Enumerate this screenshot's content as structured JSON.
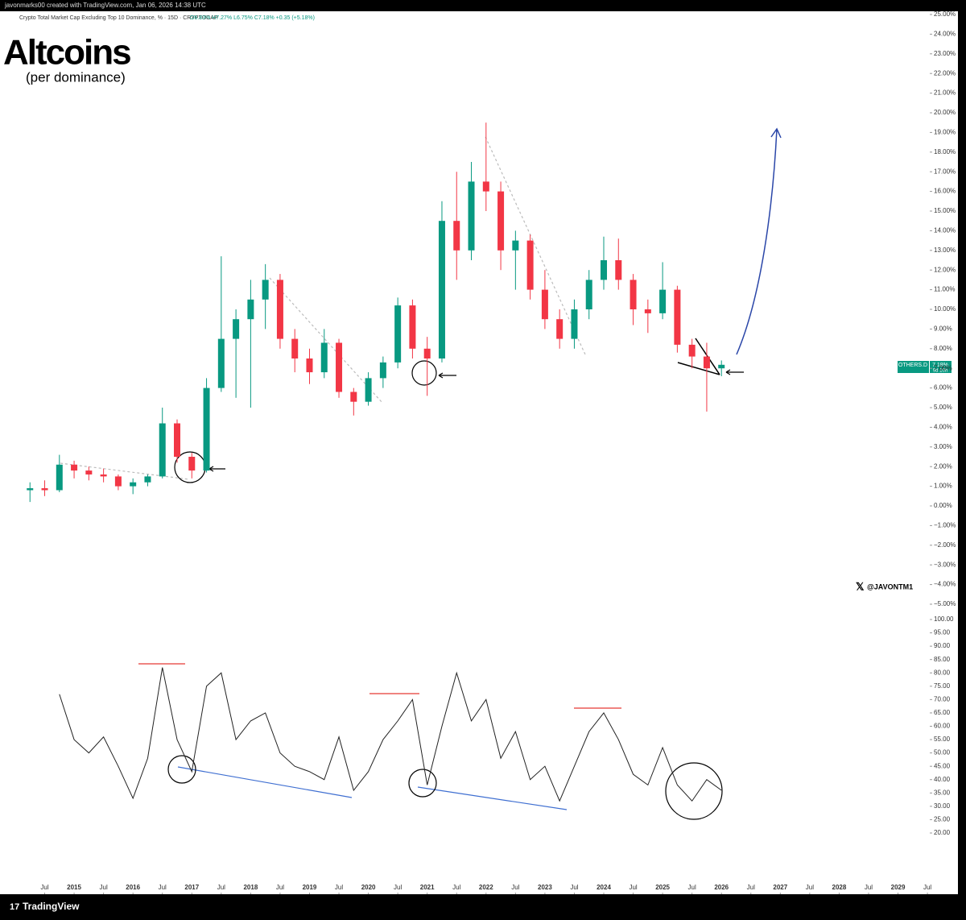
{
  "header": {
    "credit": "javonmarks00 created with TradingView.com, Jan 06, 2026 14:38 UTC",
    "symbol": "Crypto Total Market Cap Excluding Top 10 Dominance, % · 15D · CRYPTOCAP",
    "ohlc": [
      "O6.83%",
      "H7.27%",
      "L6.75%",
      "C7.18%",
      "+0.35 (+5.18%)"
    ],
    "title": "Altcoins",
    "subtitle": "(per dominance)",
    "watermark": "@JAVONTM1",
    "logo": "TradingView"
  },
  "price_label": {
    "symbol": "OTHERS.D",
    "value": "7.18%",
    "countdown": "9d 10h"
  },
  "chart_data": [
    {
      "type": "candlestick",
      "up_color": "#089981",
      "down_color": "#f23645",
      "xlim": [
        2013.85,
        2029.54
      ],
      "ylim": [
        -5,
        25
      ],
      "xticks": [
        {
          "value": 2014.5,
          "label": "Jul"
        },
        {
          "value": 2015,
          "label": "2015"
        },
        {
          "value": 2015.5,
          "label": "Jul"
        },
        {
          "value": 2016,
          "label": "2016"
        },
        {
          "value": 2016.5,
          "label": "Jul"
        },
        {
          "value": 2017,
          "label": "2017"
        },
        {
          "value": 2017.5,
          "label": "Jul"
        },
        {
          "value": 2018,
          "label": "2018"
        },
        {
          "value": 2018.5,
          "label": "Jul"
        },
        {
          "value": 2019,
          "label": "2019"
        },
        {
          "value": 2019.5,
          "label": "Jul"
        },
        {
          "value": 2020,
          "label": "2020"
        },
        {
          "value": 2020.5,
          "label": "Jul"
        },
        {
          "value": 2021,
          "label": "2021"
        },
        {
          "value": 2021.5,
          "label": "Jul"
        },
        {
          "value": 2022,
          "label": "2022"
        },
        {
          "value": 2022.5,
          "label": "Jul"
        },
        {
          "value": 2023,
          "label": "2023"
        },
        {
          "value": 2023.5,
          "label": "Jul"
        },
        {
          "value": 2024,
          "label": "2024"
        },
        {
          "value": 2024.5,
          "label": "Jul"
        },
        {
          "value": 2025,
          "label": "2025"
        },
        {
          "value": 2025.5,
          "label": "Jul"
        },
        {
          "value": 2026,
          "label": "2026"
        },
        {
          "value": 2026.5,
          "label": "Jul"
        },
        {
          "value": 2027,
          "label": "2027"
        },
        {
          "value": 2027.5,
          "label": "Jul"
        },
        {
          "value": 2028,
          "label": "2028"
        },
        {
          "value": 2028.5,
          "label": "Jul"
        },
        {
          "value": 2029,
          "label": "2029"
        },
        {
          "value": 2029.5,
          "label": "Jul"
        }
      ],
      "yticks": [
        {
          "value": 25,
          "label": "25.00%"
        },
        {
          "value": 24,
          "label": "24.00%"
        },
        {
          "value": 23,
          "label": "23.00%"
        },
        {
          "value": 22,
          "label": "22.00%"
        },
        {
          "value": 21,
          "label": "21.00%"
        },
        {
          "value": 20,
          "label": "20.00%"
        },
        {
          "value": 19,
          "label": "19.00%"
        },
        {
          "value": 18,
          "label": "18.00%"
        },
        {
          "value": 17,
          "label": "17.00%"
        },
        {
          "value": 16,
          "label": "16.00%"
        },
        {
          "value": 15,
          "label": "15.00%"
        },
        {
          "value": 14,
          "label": "14.00%"
        },
        {
          "value": 13,
          "label": "13.00%"
        },
        {
          "value": 12,
          "label": "12.00%"
        },
        {
          "value": 11,
          "label": "11.00%"
        },
        {
          "value": 10,
          "label": "10.00%"
        },
        {
          "value": 9,
          "label": "9.00%"
        },
        {
          "value": 8,
          "label": "8.00%"
        },
        {
          "value": 7,
          "label": "7.00%"
        },
        {
          "value": 6,
          "label": "6.00%"
        },
        {
          "value": 5,
          "label": "5.00%"
        },
        {
          "value": 4,
          "label": "4.00%"
        },
        {
          "value": 3,
          "label": "3.00%"
        },
        {
          "value": 2,
          "label": "2.00%"
        },
        {
          "value": 1,
          "label": "1.00%"
        },
        {
          "value": 0,
          "label": "0.00%"
        },
        {
          "value": -1,
          "label": "−1.00%"
        },
        {
          "value": -2,
          "label": "−2.00%"
        },
        {
          "value": -3,
          "label": "−3.00%"
        },
        {
          "value": -4,
          "label": "−4.00%"
        },
        {
          "value": -5,
          "label": "−5.00%"
        }
      ],
      "x": [
        2014.25,
        2014.5,
        2014.75,
        2015,
        2015.25,
        2015.5,
        2015.75,
        2016,
        2016.25,
        2016.5,
        2016.75,
        2017,
        2017.25,
        2017.5,
        2017.75,
        2018,
        2018.25,
        2018.5,
        2018.75,
        2019,
        2019.25,
        2019.5,
        2019.75,
        2020,
        2020.25,
        2020.5,
        2020.75,
        2021,
        2021.25,
        2021.5,
        2021.75,
        2022,
        2022.25,
        2022.5,
        2022.75,
        2023,
        2023.25,
        2023.5,
        2023.75,
        2024,
        2024.25,
        2024.5,
        2024.75,
        2025,
        2025.25,
        2025.5,
        2025.75,
        2026
      ],
      "open": [
        0.8,
        0.9,
        0.8,
        2.1,
        1.8,
        1.6,
        1.5,
        1.0,
        1.2,
        1.5,
        4.2,
        2.5,
        1.8,
        6.0,
        8.5,
        9.5,
        10.5,
        11.5,
        8.5,
        7.5,
        6.8,
        8.3,
        5.8,
        5.3,
        6.5,
        7.3,
        10.2,
        8.0,
        7.5,
        14.5,
        13.0,
        16.5,
        16.0,
        13.0,
        13.5,
        11.0,
        9.5,
        8.5,
        10.0,
        11.5,
        12.5,
        11.5,
        10.0,
        9.8,
        11.0,
        8.2,
        7.6,
        7.0
      ],
      "high": [
        1.2,
        1.3,
        2.6,
        2.3,
        2.0,
        1.9,
        1.6,
        1.4,
        1.6,
        5.0,
        4.4,
        2.7,
        6.5,
        12.7,
        10.0,
        11.5,
        12.3,
        11.8,
        9.0,
        8.0,
        9.0,
        8.5,
        6.0,
        6.8,
        7.6,
        10.6,
        10.5,
        8.6,
        15.5,
        17.0,
        17.5,
        19.5,
        16.5,
        14.0,
        13.8,
        12.0,
        10.0,
        10.5,
        12.0,
        13.7,
        13.6,
        11.8,
        10.5,
        12.4,
        11.2,
        8.5,
        8.3,
        7.4
      ],
      "low": [
        0.2,
        0.5,
        0.7,
        1.4,
        1.3,
        1.2,
        0.8,
        0.6,
        1.0,
        1.4,
        2.2,
        1.4,
        1.7,
        5.8,
        5.5,
        5.0,
        9.0,
        8.0,
        6.8,
        6.2,
        6.5,
        5.5,
        4.6,
        5.1,
        6.0,
        7.0,
        7.5,
        5.6,
        7.3,
        11.5,
        12.5,
        15.0,
        12.0,
        11.0,
        10.5,
        9.0,
        8.0,
        8.0,
        9.5,
        11.0,
        11.0,
        9.2,
        8.8,
        9.5,
        7.8,
        7.0,
        4.8,
        6.6
      ],
      "close": [
        0.9,
        0.8,
        2.1,
        1.8,
        1.6,
        1.5,
        1.0,
        1.2,
        1.5,
        4.2,
        2.5,
        1.8,
        6.0,
        8.5,
        9.5,
        10.5,
        11.5,
        8.5,
        7.5,
        6.8,
        8.3,
        5.8,
        5.3,
        6.5,
        7.3,
        10.2,
        8.0,
        7.5,
        14.5,
        13.0,
        16.5,
        16.0,
        13.0,
        13.5,
        11.0,
        9.5,
        8.5,
        10.0,
        11.5,
        12.5,
        11.5,
        10.0,
        9.8,
        11.0,
        8.2,
        7.6,
        7.0,
        7.18
      ]
    },
    {
      "type": "line",
      "color": "#222222",
      "ylim": [
        20,
        100
      ],
      "yticks": [
        {
          "value": 100,
          "label": "100.00"
        },
        {
          "value": 95,
          "label": "95.00"
        },
        {
          "value": 90,
          "label": "90.00"
        },
        {
          "value": 85,
          "label": "85.00"
        },
        {
          "value": 80,
          "label": "80.00"
        },
        {
          "value": 75,
          "label": "75.00"
        },
        {
          "value": 70,
          "label": "70.00"
        },
        {
          "value": 65,
          "label": "65.00"
        },
        {
          "value": 60,
          "label": "60.00"
        },
        {
          "value": 55,
          "label": "55.00"
        },
        {
          "value": 50,
          "label": "50.00"
        },
        {
          "value": 45,
          "label": "45.00"
        },
        {
          "value": 40,
          "label": "40.00"
        },
        {
          "value": 35,
          "label": "35.00"
        },
        {
          "value": 30,
          "label": "30.00"
        },
        {
          "value": 25,
          "label": "25.00"
        },
        {
          "value": 20,
          "label": "20.00"
        }
      ],
      "x": [
        2014.75,
        2015,
        2015.25,
        2015.5,
        2015.75,
        2016,
        2016.25,
        2016.5,
        2016.75,
        2017,
        2017.25,
        2017.5,
        2017.75,
        2018,
        2018.25,
        2018.5,
        2018.75,
        2019,
        2019.25,
        2019.5,
        2019.75,
        2020,
        2020.25,
        2020.5,
        2020.75,
        2021,
        2021.25,
        2021.5,
        2021.75,
        2022,
        2022.25,
        2022.5,
        2022.75,
        2023,
        2023.25,
        2023.5,
        2023.75,
        2024,
        2024.25,
        2024.5,
        2024.75,
        2025,
        2025.25,
        2025.5,
        2025.75,
        2026
      ],
      "values": [
        72,
        55,
        50,
        56,
        45,
        33,
        48,
        82,
        55,
        43,
        75,
        80,
        55,
        62,
        65,
        50,
        45,
        43,
        40,
        56,
        36,
        43,
        55,
        62,
        70,
        38,
        60,
        80,
        62,
        70,
        48,
        58,
        40,
        45,
        32,
        45,
        58,
        65,
        55,
        42,
        38,
        52,
        38,
        32,
        40,
        36
      ]
    }
  ]
}
